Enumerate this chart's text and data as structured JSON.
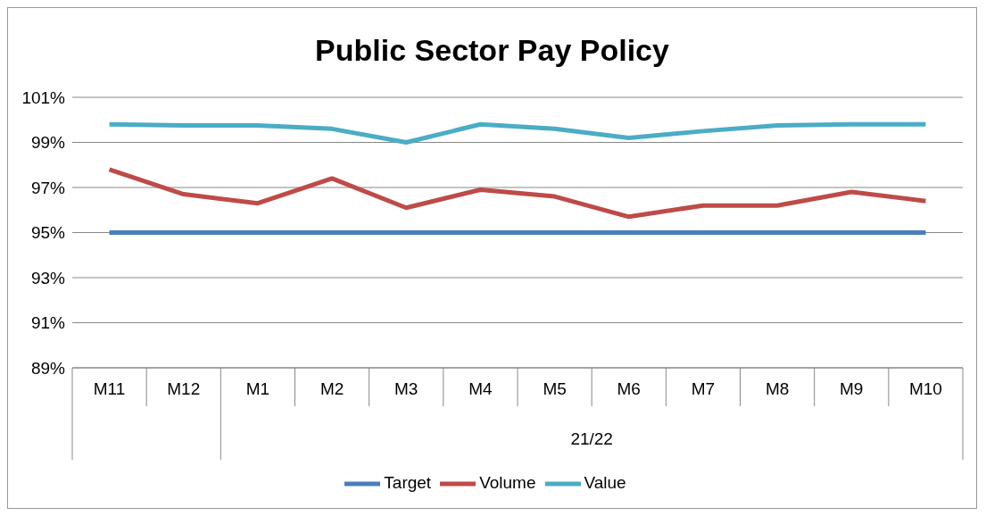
{
  "chart_data": {
    "type": "line",
    "title": "Public Sector Pay Policy",
    "categories": [
      "M11",
      "M12",
      "M1",
      "M2",
      "M3",
      "M4",
      "M5",
      "M6",
      "M7",
      "M8",
      "M9",
      "M10"
    ],
    "series": [
      {
        "name": "Target",
        "color": "#4a7ebb",
        "values": [
          95,
          95,
          95,
          95,
          95,
          95,
          95,
          95,
          95,
          95,
          95,
          95
        ]
      },
      {
        "name": "Volume",
        "color": "#be4b48",
        "values": [
          97.8,
          96.7,
          96.3,
          97.4,
          96.1,
          96.9,
          96.6,
          95.7,
          96.2,
          96.2,
          96.8,
          96.4
        ]
      },
      {
        "name": "Value",
        "color": "#4bacc6",
        "values": [
          99.8,
          99.75,
          99.75,
          99.6,
          99.0,
          99.8,
          99.6,
          99.2,
          99.5,
          99.75,
          99.8,
          99.8
        ]
      }
    ],
    "ylim": [
      89,
      101
    ],
    "yticks": [
      {
        "value": 89,
        "label": "89%"
      },
      {
        "value": 91,
        "label": "91%"
      },
      {
        "value": 93,
        "label": "93%"
      },
      {
        "value": 95,
        "label": "95%"
      },
      {
        "value": 97,
        "label": "97%"
      },
      {
        "value": 99,
        "label": "99%"
      },
      {
        "value": 101,
        "label": "101%"
      }
    ],
    "grid": "y",
    "legend": "bottom",
    "marker": "none",
    "line_style": "solid",
    "annotations": [
      "21/22"
    ]
  }
}
